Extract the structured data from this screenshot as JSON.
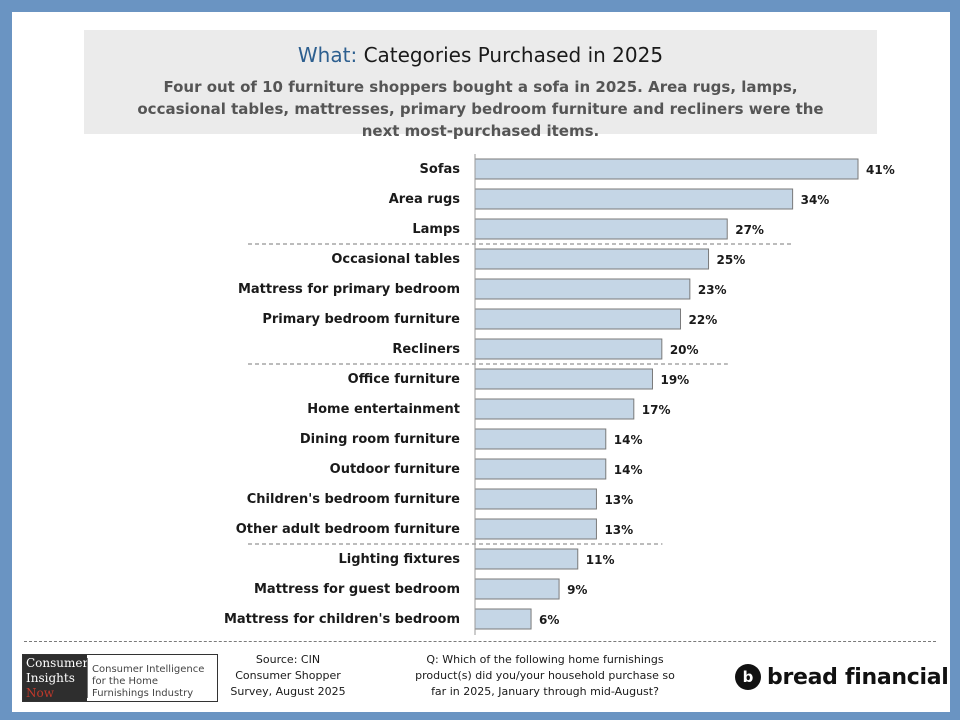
{
  "header": {
    "title_accent": "What:",
    "title_rest": "Categories Purchased in 2025",
    "subtitle": "Four out of 10 furniture shoppers bought a sofa in 2025. Area rugs, lamps, occasional tables, mattresses, primary bedroom furniture and recliners were the next most-purchased items."
  },
  "chart_data": {
    "type": "bar",
    "orientation": "horizontal",
    "categories": [
      "Sofas",
      "Area rugs",
      "Lamps",
      "Occasional tables",
      "Mattress for primary bedroom",
      "Primary bedroom furniture",
      "Recliners",
      "Office furniture",
      "Home entertainment",
      "Dining room furniture",
      "Outdoor furniture",
      "Children's bedroom furniture",
      "Other adult bedroom furniture",
      "Lighting fixtures",
      "Mattress for guest bedroom",
      "Mattress for children's bedroom"
    ],
    "values": [
      41,
      34,
      27,
      25,
      23,
      22,
      20,
      19,
      17,
      14,
      14,
      13,
      13,
      11,
      9,
      6
    ],
    "value_suffix": "%",
    "group_dividers_after_index": [
      2,
      6,
      12
    ],
    "bar_color": "#c5d6e6",
    "bar_border_color": "#7a7a7a",
    "xlim": [
      0,
      41
    ],
    "grid": false,
    "legend": false
  },
  "footer": {
    "logo_block_lines": [
      "Consumer",
      "Insights",
      "Now"
    ],
    "logo_text": "Consumer Intelligence for the Home Furnishings Industry",
    "source_lines": [
      "Source: CIN",
      "Consumer Shopper",
      "Survey, August 2025"
    ],
    "question_lines": [
      "Q: Which of the following home furnishings",
      "product(s) did you/your household purchase so",
      "far in 2025, January through mid-August?"
    ],
    "brand": "bread financial"
  }
}
